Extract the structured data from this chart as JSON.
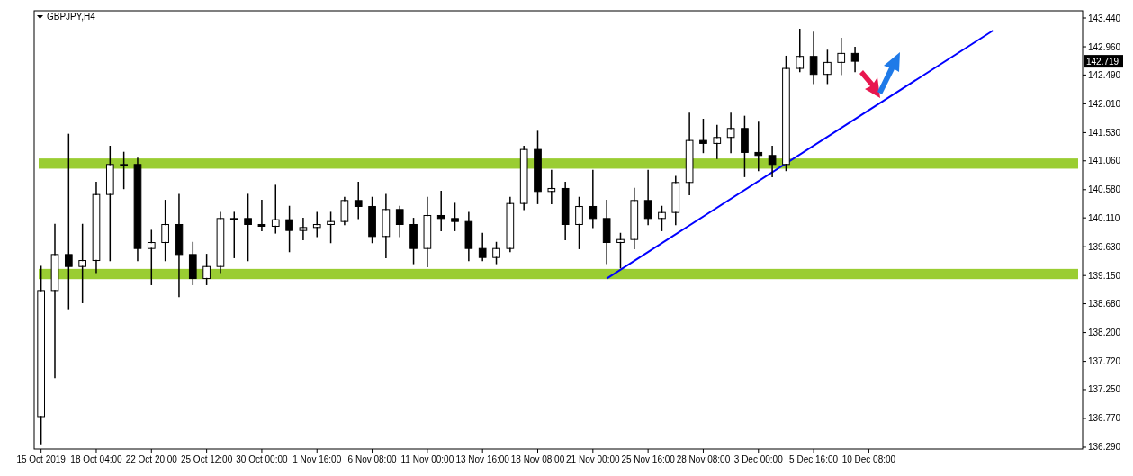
{
  "chart_data": {
    "type": "candlestick",
    "title": "GBPJPY,H4",
    "categories": [
      "15 Oct 2019",
      null,
      null,
      null,
      "18 Oct 04:00",
      null,
      null,
      null,
      "22 Oct 20:00",
      null,
      null,
      null,
      "25 Oct 12:00",
      null,
      null,
      null,
      "30 Oct 00:00",
      null,
      null,
      null,
      "1 Nov 16:00",
      null,
      null,
      null,
      "6 Nov 08:00",
      null,
      null,
      null,
      "11 Nov 00:00",
      null,
      null,
      null,
      "13 Nov 16:00",
      null,
      null,
      null,
      "18 Nov 08:00",
      null,
      null,
      null,
      "21 Nov 00:00",
      null,
      null,
      null,
      "25 Nov 16:00",
      null,
      null,
      null,
      "28 Nov 08:00",
      null,
      null,
      null,
      "3 Dec 00:00",
      null,
      null,
      null,
      "5 Dec 16:00",
      null,
      null,
      null,
      "10 Dec 08:00",
      null,
      null,
      null,
      null,
      null,
      null,
      null,
      null,
      null,
      null,
      null,
      null,
      null,
      null,
      null
    ],
    "ohlc": [
      [
        136.8,
        139.3,
        136.35,
        138.9
      ],
      [
        138.9,
        140.0,
        137.45,
        139.5
      ],
      [
        139.5,
        141.5,
        138.6,
        139.3
      ],
      [
        139.3,
        140.0,
        138.7,
        139.4
      ],
      [
        139.4,
        140.7,
        139.2,
        140.5
      ],
      [
        140.5,
        141.3,
        139.4,
        141.0
      ],
      [
        141.0,
        141.2,
        140.6,
        141.0
      ],
      [
        141.0,
        141.1,
        139.4,
        139.6
      ],
      [
        139.6,
        139.9,
        139.0,
        139.7
      ],
      [
        139.7,
        140.4,
        139.4,
        140.0
      ],
      [
        140.0,
        140.5,
        138.8,
        139.5
      ],
      [
        139.5,
        139.7,
        139.0,
        139.1
      ],
      [
        139.1,
        139.5,
        139.0,
        139.3
      ],
      [
        139.3,
        140.2,
        139.2,
        140.1
      ],
      [
        140.1,
        140.2,
        139.45,
        140.1
      ],
      [
        140.1,
        140.5,
        139.4,
        140.0
      ],
      [
        140.0,
        140.4,
        139.9,
        139.97
      ],
      [
        139.97,
        140.65,
        139.86,
        140.08
      ],
      [
        140.08,
        140.3,
        139.55,
        139.9
      ],
      [
        139.9,
        140.1,
        139.75,
        139.95
      ],
      [
        139.95,
        140.2,
        139.8,
        140.0
      ],
      [
        140.0,
        140.2,
        139.7,
        140.05
      ],
      [
        140.05,
        140.45,
        140.0,
        140.4
      ],
      [
        140.4,
        140.7,
        140.1,
        140.3
      ],
      [
        140.3,
        140.45,
        139.7,
        139.8
      ],
      [
        139.8,
        140.5,
        139.45,
        140.25
      ],
      [
        140.25,
        140.3,
        139.8,
        140.0
      ],
      [
        140.0,
        140.1,
        139.35,
        139.6
      ],
      [
        139.6,
        140.45,
        139.3,
        140.15
      ],
      [
        140.15,
        140.55,
        139.9,
        140.1
      ],
      [
        140.1,
        140.35,
        139.9,
        140.05
      ],
      [
        140.05,
        140.2,
        139.4,
        139.6
      ],
      [
        139.6,
        139.85,
        139.4,
        139.45
      ],
      [
        139.45,
        139.7,
        139.35,
        139.6
      ],
      [
        139.6,
        140.45,
        139.55,
        140.35
      ],
      [
        140.35,
        141.3,
        140.25,
        141.25
      ],
      [
        141.25,
        141.55,
        140.35,
        140.55
      ],
      [
        140.55,
        140.9,
        140.35,
        140.6
      ],
      [
        140.6,
        140.7,
        139.75,
        140.0
      ],
      [
        140.0,
        140.45,
        139.6,
        140.3
      ],
      [
        140.3,
        140.9,
        139.95,
        140.1
      ],
      [
        140.1,
        140.4,
        139.35,
        139.7
      ],
      [
        139.7,
        139.85,
        139.28,
        139.75
      ],
      [
        139.75,
        140.6,
        139.6,
        140.4
      ],
      [
        140.4,
        140.9,
        140.0,
        140.1
      ],
      [
        140.1,
        140.3,
        139.9,
        140.2
      ],
      [
        140.2,
        140.8,
        140.0,
        140.7
      ],
      [
        140.7,
        141.85,
        140.5,
        141.4
      ],
      [
        141.4,
        141.75,
        141.2,
        141.35
      ],
      [
        141.35,
        141.65,
        141.1,
        141.45
      ],
      [
        141.45,
        141.85,
        141.2,
        141.6
      ],
      [
        141.6,
        141.8,
        140.8,
        141.2
      ],
      [
        141.2,
        141.7,
        140.9,
        141.15
      ],
      [
        141.15,
        141.3,
        140.8,
        141.0
      ],
      [
        141.0,
        142.8,
        140.9,
        142.6
      ],
      [
        142.6,
        143.25,
        142.55,
        142.8
      ],
      [
        142.8,
        143.2,
        142.35,
        142.5
      ],
      [
        142.5,
        142.9,
        142.35,
        142.7
      ],
      [
        142.7,
        143.1,
        142.5,
        142.85
      ],
      [
        142.85,
        142.95,
        142.55,
        142.719
      ],
      null,
      null,
      null,
      null,
      null,
      null,
      null,
      null,
      null,
      null,
      null,
      null,
      null,
      null,
      null,
      null
    ],
    "series": [
      {
        "type": "line",
        "color": "#0000ff",
        "values": [
          null,
          null,
          null,
          null,
          null,
          null,
          null,
          null,
          null,
          null,
          null,
          null,
          null,
          null,
          null,
          null,
          null,
          null,
          null,
          null,
          null,
          null,
          null,
          null,
          null,
          null,
          null,
          null,
          null,
          null,
          null,
          null,
          null,
          null,
          null,
          null,
          null,
          null,
          null,
          null,
          null,
          139.1,
          null,
          null,
          null,
          null,
          null,
          null,
          null,
          null,
          null,
          null,
          null,
          null,
          null,
          null,
          null,
          null,
          null,
          null,
          null,
          null,
          null,
          null,
          null,
          null,
          null,
          null,
          null,
          143.23,
          null,
          null,
          null,
          null,
          null,
          null
        ]
      }
    ],
    "bands": [
      {
        "axis": "y",
        "from": 140.93,
        "to": 141.1,
        "color": "#9acd32"
      },
      {
        "axis": "y",
        "from": 139.09,
        "to": 139.26,
        "color": "#9acd32"
      }
    ],
    "annotations": [
      "142.719"
    ],
    "ylim": [
      136.26,
      143.56
    ],
    "yticks": [
      {
        "value": 143.44,
        "label": "143.440"
      },
      {
        "value": 142.96,
        "label": "142.960"
      },
      {
        "value": 142.49,
        "label": "142.490"
      },
      {
        "value": 142.01,
        "label": "142.010"
      },
      {
        "value": 141.53,
        "label": "141.530"
      },
      {
        "value": 141.06,
        "label": "141.060"
      },
      {
        "value": 140.58,
        "label": "140.580"
      },
      {
        "value": 140.11,
        "label": "140.110"
      },
      {
        "value": 139.63,
        "label": "139.630"
      },
      {
        "value": 139.15,
        "label": "139.150"
      },
      {
        "value": 138.68,
        "label": "138.680"
      },
      {
        "value": 138.2,
        "label": "138.200"
      },
      {
        "value": 137.72,
        "label": "137.720"
      },
      {
        "value": 137.25,
        "label": "137.250"
      },
      {
        "value": 136.77,
        "label": "136.770"
      },
      {
        "value": 136.29,
        "label": "136.290"
      }
    ],
    "grid": false
  }
}
